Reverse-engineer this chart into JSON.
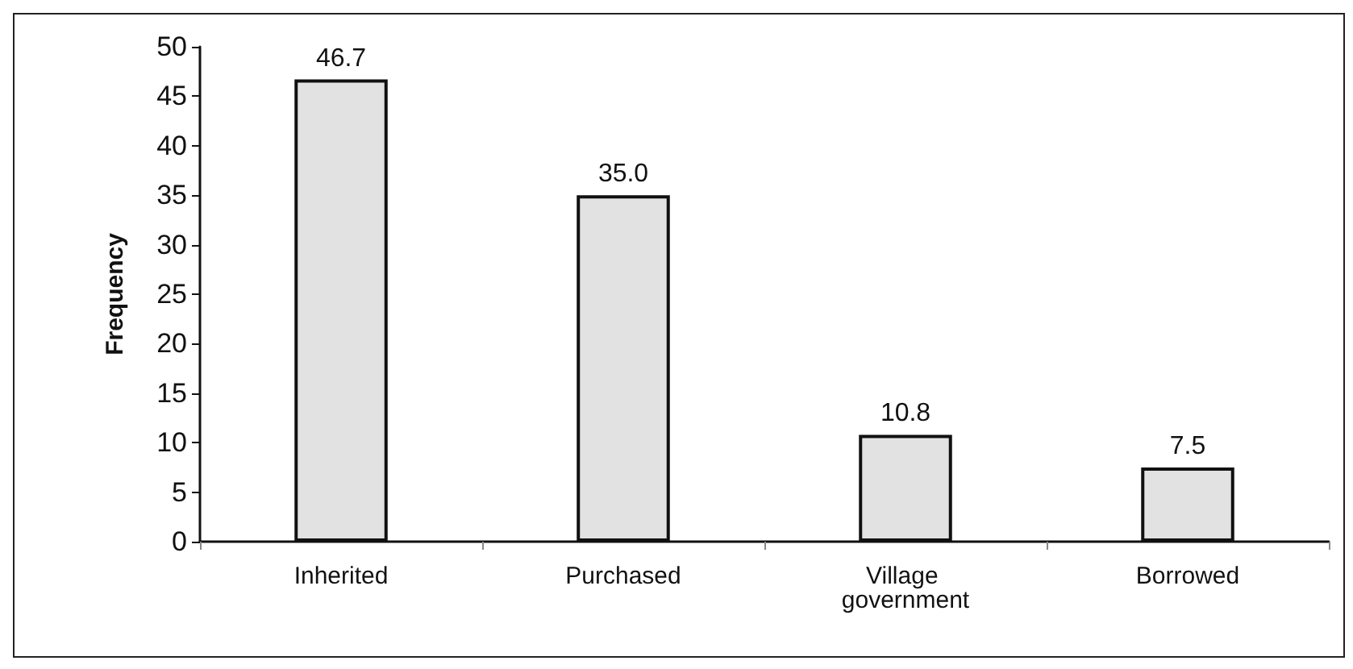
{
  "chart_data": {
    "type": "bar",
    "ylabel": "Frequency",
    "categories": [
      "Inherited",
      "Purchased",
      "Village government",
      "Borrowed"
    ],
    "values": [
      46.7,
      35.0,
      10.8,
      7.5
    ],
    "value_labels": [
      "46.7",
      "35.0",
      "10.8",
      "7.5"
    ],
    "color": "#e2e2e2",
    "ylim": [
      0,
      50
    ],
    "yticks": [
      0,
      5,
      10,
      15,
      20,
      25,
      30,
      35,
      40,
      45,
      50
    ],
    "grid": false
  }
}
